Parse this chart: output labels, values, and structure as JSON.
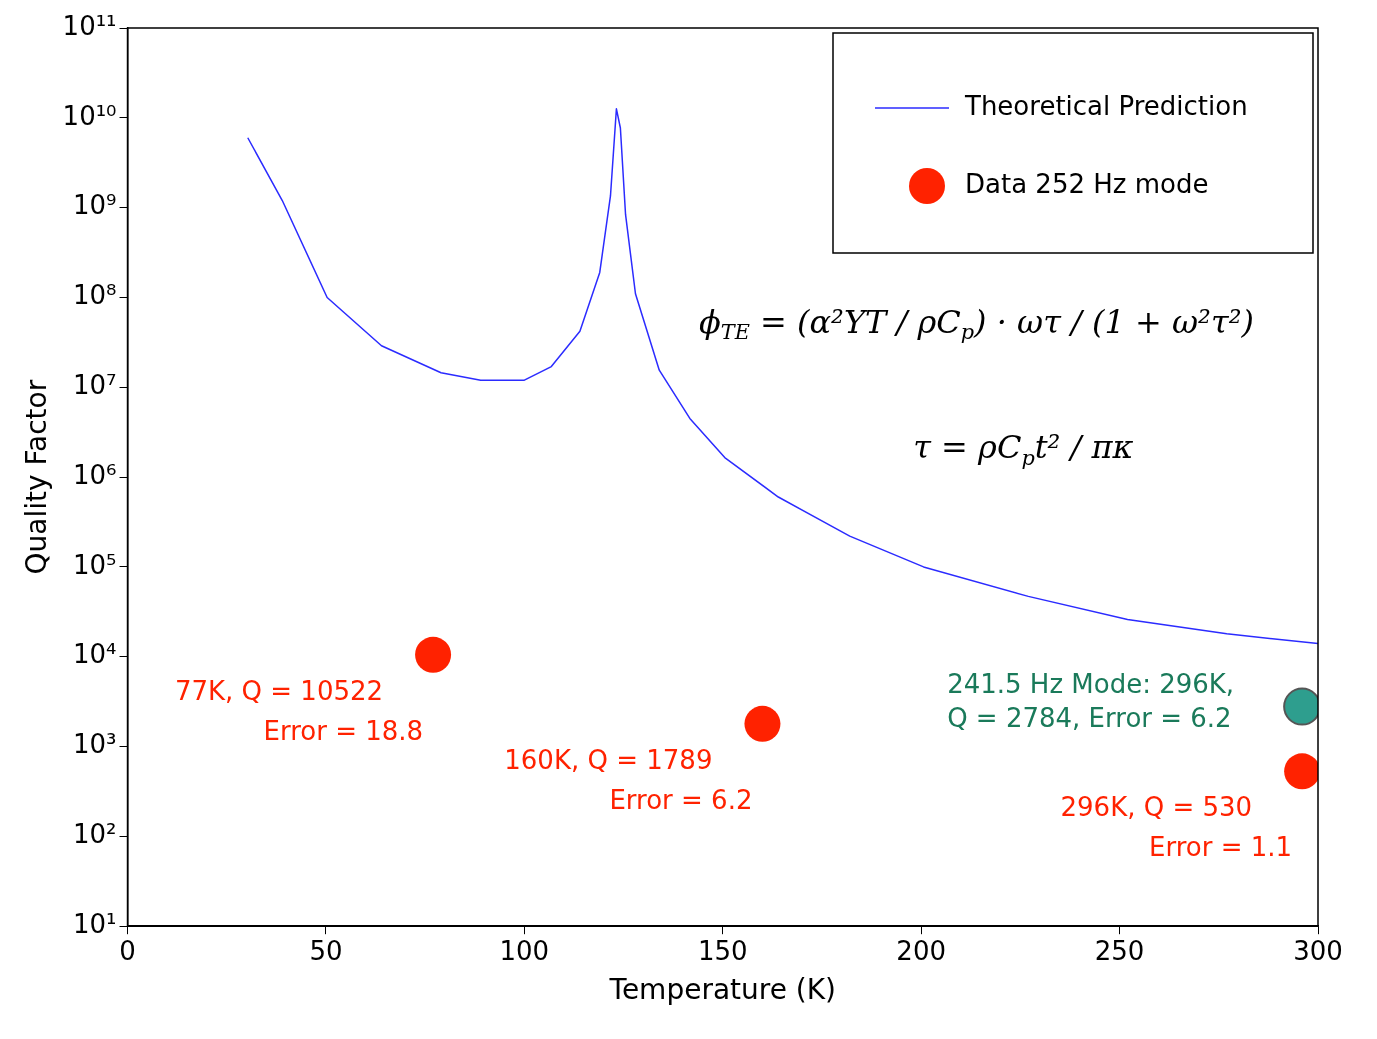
{
  "chart_data": {
    "type": "line",
    "xlabel": "Temperature (K)",
    "ylabel": "Quality Factor",
    "xlim": [
      0,
      300
    ],
    "xticks": [
      0,
      50,
      100,
      150,
      200,
      250,
      300
    ],
    "ylim": [
      10,
      100000000000
    ],
    "log": "y",
    "yticks": [
      {
        "value": 10,
        "label": "10¹"
      },
      {
        "value": 100,
        "label": "10²"
      },
      {
        "value": 1000,
        "label": "10³"
      },
      {
        "value": 10000,
        "label": "10⁴"
      },
      {
        "value": 100000,
        "label": "10⁵"
      },
      {
        "value": 1000000,
        "label": "10⁶"
      },
      {
        "value": 10000000,
        "label": "10⁷"
      },
      {
        "value": 100000000,
        "label": "10⁸"
      },
      {
        "value": 1000000000,
        "label": "10⁹"
      },
      {
        "value": 10000000000,
        "label": "10¹⁰"
      },
      {
        "value": 100000000000,
        "label": "10¹¹"
      }
    ],
    "grid": false,
    "legend": "top right",
    "series": [
      {
        "name": "Theoretical Prediction",
        "type": "line",
        "color": "#2b2bff",
        "line_style": "solid",
        "marker": "none",
        "x": [
          30.3,
          39,
          50.3,
          64,
          79,
          89,
          100,
          106.8,
          114,
          119,
          121.7,
          123.2,
          124.2,
          125.5,
          128,
          134,
          141.7,
          150.5,
          164,
          182,
          200.6,
          227,
          252,
          277,
          300
        ],
        "values": [
          6000000000.0,
          1200000000.0,
          100000000.0,
          29000000.0,
          14500000.0,
          12000000.0,
          12000000.0,
          17000000.0,
          42000000.0,
          190000000.0,
          1350000000.0,
          12600000000.0,
          7700000000.0,
          840000000.0,
          110000000.0,
          15500000.0,
          4500000.0,
          1650000.0,
          600000.0,
          220000.0,
          100000.0,
          47000.0,
          26000.0,
          18000.0,
          14000.0
        ]
      },
      {
        "name": "Data 252 Hz mode",
        "type": "scatter",
        "color": "#ff2200",
        "marker": "circle",
        "x": [
          77,
          160,
          296
        ],
        "values": [
          10522,
          1789,
          530
        ]
      },
      {
        "type": "scatter",
        "color": "#2e9e8e",
        "marker": "circle",
        "x": [
          296
        ],
        "values": [
          2784
        ]
      }
    ],
    "annotations": [
      {
        "text": "77K, Q = 10522\nError = 18.8",
        "x": 77,
        "y": 10522
      },
      {
        "text": "160K, Q = 1789\nError = 6.2",
        "x": 160,
        "y": 1789
      },
      {
        "text": "296K, Q = 530\nError = 1.1",
        "x": 296,
        "y": 530
      },
      {
        "text": "241.5 Hz Mode: 296K,\nQ = 2784, Error = 6.2",
        "x": 296,
        "y": 2784
      },
      "ϕ$_{TE}$ = (α²YT / ρC$_{p}$) · ωτ / (1 + ω²τ²)",
      "τ = ρC$_{p}$t² / πκ"
    ]
  }
}
